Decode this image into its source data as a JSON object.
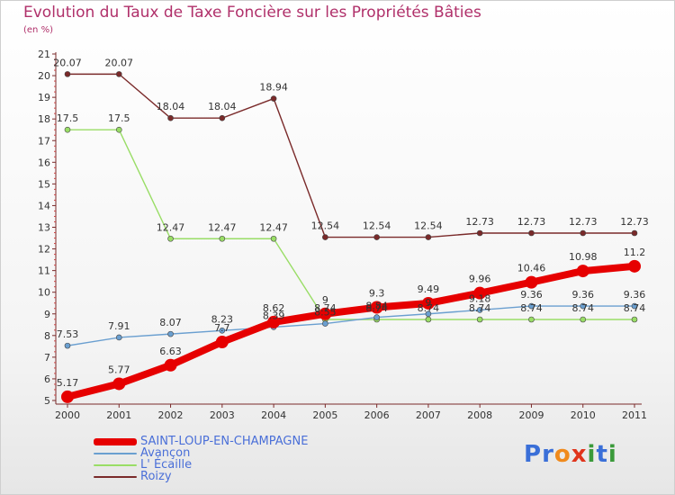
{
  "title": "Evolution du Taux de Taxe Foncière sur les Propriétés Bâties",
  "subtitle": "(en %)",
  "brand": {
    "text": "Proxiti",
    "letters": [
      "P",
      "r",
      "o",
      "x",
      "i",
      "t",
      "i"
    ],
    "colors": [
      "#3a6fd8",
      "#3a6fd8",
      "#f08a1c",
      "#e0341c",
      "#3a9a3a",
      "#3a6fd8",
      "#3a9a3a"
    ]
  },
  "chart_data": {
    "type": "line",
    "title": "Evolution du Taux de Taxe Foncière sur les Propriétés Bâties",
    "ylabel": "(en %)",
    "xlabel": "",
    "x": [
      "2000",
      "2001",
      "2002",
      "2003",
      "2004",
      "2005",
      "2006",
      "2007",
      "2008",
      "2009",
      "2010",
      "2011"
    ],
    "yticks": [
      5,
      6,
      7,
      8,
      9,
      10,
      11,
      12,
      13,
      14,
      15,
      16,
      17,
      18,
      19,
      20,
      21
    ],
    "ylim": [
      5,
      21
    ],
    "series": [
      {
        "name": "SAINT-LOUP-EN-CHAMPAGNE",
        "color": "#e60000",
        "values": [
          5.17,
          5.77,
          6.63,
          7.7,
          8.62,
          9,
          9.3,
          9.49,
          9.96,
          10.46,
          10.98,
          11.2
        ],
        "labels": [
          "5.17",
          "5.77",
          "6.63",
          "7.7",
          "8.62",
          "9",
          "9.3",
          "9.49",
          "9.96",
          "10.46",
          "10.98",
          "11.2"
        ]
      },
      {
        "name": "Avançon",
        "color": "#6a9fd0",
        "values": [
          7.53,
          7.91,
          8.07,
          8.23,
          8.39,
          8.55,
          8.84,
          9,
          9.18,
          9.36,
          9.36,
          9.36
        ],
        "labels": [
          "7.53",
          "7.91",
          "8.07",
          "8.23",
          "8.39",
          "8.55",
          "8.84",
          "9",
          "9.18",
          "9.36",
          "9.36",
          "9.36"
        ]
      },
      {
        "name": "L' Écaille",
        "color": "#99dd66",
        "values": [
          17.5,
          17.5,
          12.47,
          12.47,
          12.47,
          8.74,
          8.74,
          8.74,
          8.74,
          8.74,
          8.74,
          8.74
        ],
        "labels": [
          "17.5",
          "17.5",
          "12.47",
          "12.47",
          "12.47",
          "8.74",
          "8.74",
          "8.74",
          "8.74",
          "8.74",
          "8.74",
          "8.74"
        ]
      },
      {
        "name": "Roizy",
        "color": "#7a2a2a",
        "values": [
          20.07,
          20.07,
          18.04,
          18.04,
          18.94,
          12.54,
          12.54,
          12.54,
          12.73,
          12.73,
          12.73,
          12.73
        ],
        "labels": [
          "20.07",
          "20.07",
          "18.04",
          "18.04",
          "18.94",
          "12.54",
          "12.54",
          "12.54",
          "12.73",
          "12.73",
          "12.73",
          "12.73"
        ]
      }
    ],
    "legend": "bottom-left",
    "grid": false
  }
}
